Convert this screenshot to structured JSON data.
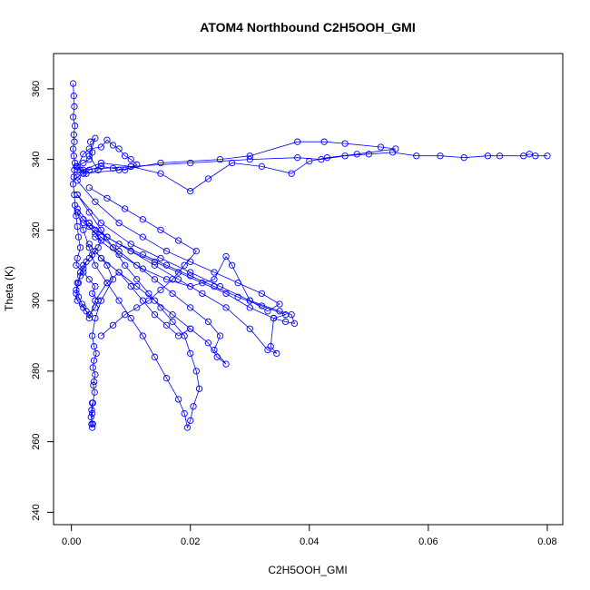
{
  "chart_data": {
    "type": "scatter",
    "title": "ATOM4 Northbound C2H5OOH_GMI",
    "xlabel": "C2H5OOH_GMI",
    "ylabel": "Theta (K)",
    "xlim": [
      -0.003,
      0.0826
    ],
    "ylim": [
      236.5,
      370.0
    ],
    "x_ticks": [
      0.0,
      0.02,
      0.04,
      0.06,
      0.08
    ],
    "x_tick_labels": [
      "0.00",
      "0.02",
      "0.04",
      "0.06",
      "0.08"
    ],
    "y_ticks": [
      240,
      260,
      280,
      300,
      320,
      340,
      360
    ],
    "y_tick_labels": [
      "240",
      "260",
      "280",
      "300",
      "320",
      "340",
      "360"
    ],
    "grid": false,
    "legend": "none",
    "marker": "open-circle",
    "connected": true,
    "color": "#0000ff",
    "series": [
      {
        "x": [
          0.0003,
          0.0004,
          0.0005,
          0.0003,
          0.0006,
          0.0004,
          0.0005,
          0.0003,
          0.0004,
          0.0006,
          0.0005,
          0.0004,
          0.0003,
          0.0005,
          0.0006,
          0.0008,
          0.001,
          0.0012,
          0.0015,
          0.001,
          0.0008,
          0.002,
          0.003,
          0.004,
          0.0035,
          0.0045,
          0.004,
          0.003,
          0.002,
          0.001,
          0.0008,
          0.0012,
          0.0015,
          0.002,
          0.003,
          0.004,
          0.005,
          0.006,
          0.007,
          0.005,
          0.004,
          0.0035,
          0.0038,
          0.0042,
          0.0038,
          0.0036,
          0.004,
          0.0038,
          0.0037,
          0.0039,
          0.0036,
          0.0035,
          0.0034,
          0.0035,
          0.0036,
          0.0033,
          0.0034,
          0.0035
        ],
        "y": [
          361.5,
          358.0,
          355.0,
          352.0,
          349.5,
          347.0,
          345.0,
          343.0,
          341.0,
          339.0,
          337.0,
          335.0,
          333.0,
          330.0,
          327.0,
          324.0,
          321.0,
          318.0,
          315.0,
          312.0,
          310.0,
          308.0,
          306.0,
          304.0,
          302.0,
          300.0,
          298.0,
          296.0,
          298.0,
          300.0,
          302.0,
          305.0,
          308.0,
          310.0,
          312.0,
          314.0,
          312.0,
          310.0,
          306.0,
          300.0,
          295.0,
          290.0,
          287.0,
          285.0,
          283.0,
          281.0,
          279.0,
          277.0,
          276.0,
          274.0,
          271.0,
          268.0,
          265.0,
          264.0,
          265.0,
          267.0,
          269.0,
          271.0
        ]
      },
      {
        "x": [
          0.001,
          0.003,
          0.005,
          0.007,
          0.009,
          0.011,
          0.013,
          0.015,
          0.017,
          0.019,
          0.02,
          0.021,
          0.0215,
          0.0205,
          0.02,
          0.0195,
          0.019,
          0.018,
          0.016,
          0.014,
          0.012,
          0.01,
          0.008,
          0.006,
          0.004,
          0.003,
          0.002,
          0.001
        ],
        "y": [
          330.0,
          325.0,
          320.0,
          315.0,
          310.0,
          306.0,
          302.0,
          298.0,
          294.0,
          290.0,
          285.0,
          280.0,
          275.0,
          270.0,
          266.0,
          264.0,
          268.0,
          272.0,
          278.0,
          284.0,
          290.0,
          295.0,
          300.0,
          305.0,
          310.0,
          315.0,
          320.0,
          325.0
        ]
      },
      {
        "x": [
          0.002,
          0.005,
          0.008,
          0.011,
          0.014,
          0.017,
          0.02,
          0.023,
          0.025,
          0.024,
          0.026,
          0.0245,
          0.023,
          0.02,
          0.017,
          0.014,
          0.011,
          0.008,
          0.005,
          0.003
        ],
        "y": [
          322.0,
          318.0,
          314.0,
          310.0,
          306.0,
          302.0,
          298.0,
          294.0,
          290.0,
          286.0,
          282.0,
          284.0,
          288.0,
          292.0,
          296.0,
          300.0,
          304.0,
          308.0,
          312.0,
          316.0
        ]
      },
      {
        "x": [
          0.001,
          0.005,
          0.01,
          0.015,
          0.02,
          0.025,
          0.03,
          0.035,
          0.037,
          0.0375,
          0.036,
          0.034,
          0.0335,
          0.0345,
          0.033,
          0.03,
          0.026,
          0.022,
          0.018,
          0.014,
          0.01,
          0.006,
          0.003
        ],
        "y": [
          330.0,
          322.0,
          316.0,
          312.0,
          308.0,
          304.0,
          300.0,
          297.0,
          296.0,
          293.5,
          294.0,
          295.0,
          287.0,
          285.0,
          286.0,
          292.0,
          298.0,
          302.0,
          306.0,
          310.0,
          314.0,
          318.0,
          322.0
        ]
      },
      {
        "x": [
          0.001,
          0.004,
          0.008,
          0.012,
          0.016,
          0.02,
          0.024,
          0.028,
          0.032,
          0.036,
          0.034,
          0.03,
          0.026,
          0.022,
          0.018,
          0.014,
          0.01,
          0.006,
          0.003
        ],
        "y": [
          326.0,
          320.0,
          316.0,
          313.0,
          310.0,
          307.0,
          304.0,
          301.0,
          298.5,
          296.0,
          295.0,
          298.0,
          302.0,
          305.0,
          308.0,
          311.0,
          314.0,
          318.0,
          322.0
        ]
      },
      {
        "x": [
          0.001,
          0.004,
          0.008,
          0.012,
          0.016,
          0.02,
          0.024,
          0.028,
          0.032,
          0.035,
          0.033,
          0.03,
          0.027,
          0.026,
          0.024,
          0.02,
          0.016,
          0.012,
          0.008,
          0.004
        ],
        "y": [
          334.0,
          328.0,
          322.0,
          318.0,
          314.0,
          311.0,
          308.0,
          305.0,
          302.0,
          299.0,
          297.0,
          300.0,
          310.0,
          312.5,
          306.0,
          304.0,
          306.0,
          309.0,
          313.0,
          318.0
        ]
      },
      {
        "x": [
          0.0008,
          0.002,
          0.003,
          0.0035,
          0.0032,
          0.004,
          0.003,
          0.0045,
          0.0025,
          0.0015,
          0.001,
          0.002,
          0.003,
          0.005,
          0.006,
          0.007,
          0.008,
          0.009,
          0.01,
          0.011,
          0.009,
          0.007,
          0.005,
          0.003,
          0.002,
          0.001
        ],
        "y": [
          338.0,
          339.0,
          340.0,
          342.0,
          345.0,
          346.0,
          341.0,
          337.0,
          336.0,
          337.0,
          338.0,
          341.5,
          343.0,
          343.5,
          345.5,
          344.0,
          343.0,
          341.0,
          340.0,
          338.5,
          337.0,
          337.5,
          338.0,
          337.0,
          336.0,
          335.0
        ]
      },
      {
        "x": [
          0.001,
          0.01,
          0.02,
          0.03,
          0.038,
          0.042,
          0.046,
          0.05,
          0.054,
          0.058,
          0.062,
          0.066,
          0.07,
          0.072,
          0.076,
          0.077,
          0.078,
          0.08
        ],
        "y": [
          337.0,
          338.0,
          339.0,
          340.0,
          340.5,
          340.0,
          341.0,
          341.5,
          342.0,
          341.0,
          341.0,
          340.5,
          341.0,
          341.0,
          341.0,
          341.5,
          341.0,
          341.0
        ]
      },
      {
        "x": [
          0.002,
          0.008,
          0.015,
          0.025,
          0.03,
          0.038,
          0.0425,
          0.046,
          0.052,
          0.0545,
          0.048,
          0.043,
          0.04,
          0.037,
          0.032,
          0.027,
          0.023,
          0.02,
          0.015,
          0.01,
          0.005,
          0.002
        ],
        "y": [
          336.0,
          337.0,
          339.0,
          340.0,
          341.0,
          345.0,
          345.0,
          344.5,
          343.5,
          343.0,
          341.5,
          340.5,
          339.5,
          336.0,
          338.0,
          339.0,
          334.5,
          331.0,
          336.0,
          338.0,
          339.0,
          337.0
        ]
      },
      {
        "x": [
          0.001,
          0.002,
          0.003,
          0.004,
          0.005,
          0.0045,
          0.0035,
          0.0025,
          0.002,
          0.0015,
          0.001,
          0.0008,
          0.0012,
          0.0018,
          0.0025,
          0.003,
          0.004,
          0.006,
          0.008,
          0.01,
          0.012,
          0.014,
          0.016,
          0.018,
          0.02
        ],
        "y": [
          325.0,
          323.0,
          321.0,
          319.0,
          317.0,
          315.0,
          313.0,
          311.0,
          309.0,
          307.0,
          305.0,
          303.0,
          301.0,
          299.0,
          297.0,
          295.0,
          300.0,
          305.0,
          308.0,
          304.0,
          300.0,
          296.0,
          293.0,
          290.0,
          292.0
        ]
      },
      {
        "x": [
          0.003,
          0.006,
          0.009,
          0.012,
          0.015,
          0.018,
          0.021,
          0.019,
          0.017,
          0.015,
          0.013,
          0.011,
          0.009,
          0.007,
          0.005
        ],
        "y": [
          332.0,
          329.0,
          326.0,
          323.0,
          320.0,
          317.0,
          314.0,
          310.0,
          306.0,
          303.0,
          300.0,
          298.0,
          296.0,
          293.0,
          290.0
        ]
      }
    ]
  }
}
